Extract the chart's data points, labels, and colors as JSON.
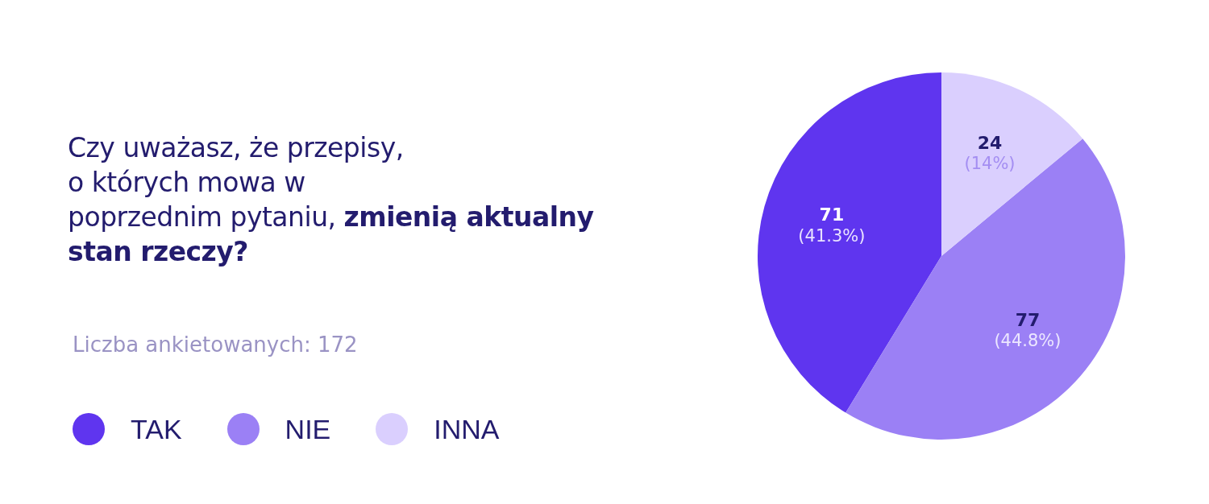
{
  "chart_data": {
    "type": "pie",
    "title": "Czy uważasz, że przepisy, o których mowa w poprzednim pytaniu, zmienią aktualny stan rzeczy?",
    "annotations": [
      "Liczba ankietowanych: 172"
    ],
    "categories": [
      "TAK",
      "NIE",
      "INNA"
    ],
    "values": [
      71,
      77,
      24
    ],
    "colors": [
      "#5f35ef",
      "#9b80f5",
      "#dacffe"
    ],
    "value_labels": [
      "71 (41.3%)",
      "77 (44.8%)",
      "24 (14%)"
    ],
    "legend": "left"
  }
}
